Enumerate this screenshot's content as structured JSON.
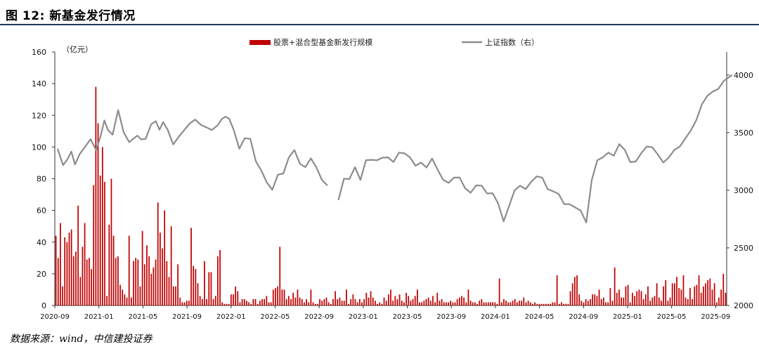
{
  "header": {
    "title": "图 12: 新基金发行情况"
  },
  "footer": {
    "source": "数据来源：wind，中信建投证券"
  },
  "chart_data": {
    "type": "bar",
    "units": {
      "left": "（亿元）"
    },
    "left_axis": {
      "ylim": [
        0,
        160
      ],
      "ticks": [
        0,
        20,
        40,
        60,
        80,
        100,
        120,
        140,
        160
      ]
    },
    "right_axis": {
      "ylim": [
        2000,
        4200
      ],
      "ticks": [
        2000,
        2500,
        3000,
        3500,
        4000
      ]
    },
    "x_tick_labels": [
      "2020-09",
      "2021-01",
      "2021-05",
      "2021-09",
      "2022-01",
      "2022-05",
      "2022-09",
      "2023-01",
      "2023-05",
      "2023-09",
      "2024-01",
      "2024-05",
      "2024-09",
      "2025-01",
      "2025-05",
      "2025-09"
    ],
    "colors": {
      "bar": "#c00000",
      "line": "#8c8c8c"
    },
    "series": [
      {
        "name": "股票+混合型基金新发行规模",
        "axis": "left",
        "kind": "bar",
        "values": [
          44,
          30,
          52,
          12,
          43,
          40,
          46,
          48,
          31,
          34,
          63,
          18,
          37,
          52,
          29,
          30,
          23,
          76,
          138,
          115,
          82,
          100,
          78,
          6,
          51,
          80,
          44,
          30,
          31,
          13,
          10,
          7,
          5,
          44,
          5,
          28,
          30,
          29,
          12,
          47,
          26,
          38,
          31,
          20,
          24,
          29,
          65,
          46,
          36,
          60,
          28,
          18,
          50,
          12,
          12,
          26,
          5,
          2,
          2,
          3,
          3,
          49,
          25,
          23,
          14,
          6,
          4,
          28,
          4,
          21,
          21,
          4,
          6,
          31,
          35,
          2,
          1,
          1,
          1,
          7,
          7,
          12,
          9,
          2,
          4,
          4,
          3,
          2,
          1,
          4,
          4,
          1,
          3,
          4,
          4,
          6,
          2,
          2,
          10,
          11,
          12,
          37,
          10,
          10,
          4,
          6,
          4,
          8,
          5,
          10,
          5,
          4,
          2,
          4,
          2,
          10,
          2,
          1,
          1,
          4,
          3,
          4,
          5,
          2,
          1,
          4,
          9,
          4,
          5,
          3,
          3,
          10,
          1,
          4,
          7,
          4,
          2,
          4,
          2,
          4,
          8,
          5,
          9,
          5,
          3,
          1,
          2,
          1,
          5,
          3,
          7,
          10,
          3,
          6,
          4,
          7,
          3,
          2,
          8,
          6,
          3,
          4,
          6,
          10,
          2,
          2,
          3,
          4,
          5,
          3,
          6,
          2,
          8,
          3,
          4,
          2,
          2,
          2,
          3,
          2,
          2,
          4,
          5,
          6,
          5,
          2,
          10,
          3,
          2,
          2,
          1,
          3,
          4,
          2,
          2,
          2,
          2,
          2,
          2,
          1,
          17,
          2,
          4,
          3,
          2,
          2,
          3,
          4,
          2,
          3,
          3,
          5,
          2,
          3,
          2,
          1,
          2,
          1,
          1,
          1,
          1,
          1,
          1,
          1,
          2,
          2,
          19,
          1,
          2,
          1,
          1,
          1,
          9,
          14,
          18,
          19,
          7,
          3,
          2,
          4,
          3,
          4,
          7,
          7,
          6,
          10,
          4,
          5,
          2,
          2,
          11,
          3,
          24,
          8,
          10,
          5,
          5,
          12,
          13,
          2,
          8,
          6,
          9,
          10,
          9,
          4,
          7,
          12,
          3,
          5,
          6,
          14,
          5,
          3,
          12,
          16,
          3,
          5,
          14,
          14,
          18,
          11,
          10,
          19,
          5,
          4,
          11,
          4,
          12,
          13,
          19,
          8,
          12,
          14,
          16,
          17,
          10,
          14,
          2,
          5,
          10,
          20,
          8
        ]
      },
      {
        "name": "上证指数（右）",
        "axis": "right",
        "kind": "line",
        "points": [
          [
            "2020-09",
            3360
          ],
          [
            "2020-09",
            3218
          ],
          [
            "2020-10",
            3272
          ],
          [
            "2020-10",
            3335
          ],
          [
            "2020-10",
            3224
          ],
          [
            "2020-11",
            3312
          ],
          [
            "2020-11",
            3377
          ],
          [
            "2020-12",
            3444
          ],
          [
            "2020-12",
            3347
          ],
          [
            "2021-01",
            3473
          ],
          [
            "2021-01",
            3606
          ],
          [
            "2021-01",
            3522
          ],
          [
            "2021-02",
            3483
          ],
          [
            "2021-02",
            3696
          ],
          [
            "2021-03",
            3502
          ],
          [
            "2021-03",
            3418
          ],
          [
            "2021-04",
            3450
          ],
          [
            "2021-04",
            3474
          ],
          [
            "2021-04",
            3441
          ],
          [
            "2021-05",
            3447
          ],
          [
            "2021-05",
            3572
          ],
          [
            "2021-06",
            3600
          ],
          [
            "2021-06",
            3525
          ],
          [
            "2021-06",
            3591
          ],
          [
            "2021-07",
            3525
          ],
          [
            "2021-07",
            3397
          ],
          [
            "2021-08",
            3464
          ],
          [
            "2021-08",
            3522
          ],
          [
            "2021-09",
            3580
          ],
          [
            "2021-09",
            3613
          ],
          [
            "2021-10",
            3568
          ],
          [
            "2021-10",
            3547
          ],
          [
            "2021-11",
            3523
          ],
          [
            "2021-11",
            3560
          ],
          [
            "2021-12",
            3618
          ],
          [
            "2021-12",
            3639
          ],
          [
            "2021-12",
            3620
          ],
          [
            "2022-01",
            3522
          ],
          [
            "2022-01",
            3361
          ],
          [
            "2022-02",
            3452
          ],
          [
            "2022-02",
            3445
          ],
          [
            "2022-03",
            3252
          ],
          [
            "2022-03",
            3170
          ],
          [
            "2022-04",
            3067
          ],
          [
            "2022-04",
            3004
          ],
          [
            "2022-05",
            3135
          ],
          [
            "2022-05",
            3146
          ],
          [
            "2022-06",
            3285
          ],
          [
            "2022-06",
            3349
          ],
          [
            "2022-07",
            3230
          ],
          [
            "2022-07",
            3200
          ],
          [
            "2022-08",
            3277
          ],
          [
            "2022-08",
            3198
          ],
          [
            "2022-09",
            3090
          ],
          [
            "2022-09",
            3041
          ],
          [
            "2022-10",
            3080
          ],
          [
            "2022-10",
            2915
          ],
          [
            "2022-11",
            3100
          ],
          [
            "2022-11",
            3097
          ],
          [
            "2022-12",
            3200
          ],
          [
            "2022-12",
            3089
          ],
          [
            "2023-01",
            3260
          ],
          [
            "2023-01",
            3264
          ],
          [
            "2023-02",
            3260
          ],
          [
            "2023-02",
            3283
          ],
          [
            "2023-03",
            3285
          ],
          [
            "2023-03",
            3245
          ],
          [
            "2023-04",
            3327
          ],
          [
            "2023-04",
            3320
          ],
          [
            "2023-05",
            3285
          ],
          [
            "2023-05",
            3212
          ],
          [
            "2023-06",
            3240
          ],
          [
            "2023-06",
            3197
          ],
          [
            "2023-07",
            3275
          ],
          [
            "2023-07",
            3180
          ],
          [
            "2023-08",
            3092
          ],
          [
            "2023-08",
            3064
          ],
          [
            "2023-09",
            3110
          ],
          [
            "2023-09",
            3110
          ],
          [
            "2023-10",
            3017
          ],
          [
            "2023-10",
            2978
          ],
          [
            "2023-11",
            3042
          ],
          [
            "2023-11",
            3040
          ],
          [
            "2023-12",
            2972
          ],
          [
            "2023-12",
            2974
          ],
          [
            "2024-01",
            2886
          ],
          [
            "2024-01",
            2730
          ],
          [
            "2024-02",
            2865
          ],
          [
            "2024-02",
            3000
          ],
          [
            "2024-03",
            3039
          ],
          [
            "2024-03",
            3010
          ],
          [
            "2024-04",
            3072
          ],
          [
            "2024-04",
            3120
          ],
          [
            "2024-05",
            3110
          ],
          [
            "2024-05",
            3010
          ],
          [
            "2024-06",
            2990
          ],
          [
            "2024-06",
            2967
          ],
          [
            "2024-07",
            2880
          ],
          [
            "2024-07",
            2879
          ],
          [
            "2024-08",
            2850
          ],
          [
            "2024-08",
            2824
          ],
          [
            "2024-09",
            2720
          ],
          [
            "2024-09",
            3087
          ],
          [
            "2024-10",
            3260
          ],
          [
            "2024-10",
            3285
          ],
          [
            "2024-11",
            3326
          ],
          [
            "2024-11",
            3300
          ],
          [
            "2024-12",
            3400
          ],
          [
            "2024-12",
            3351
          ],
          [
            "2025-01",
            3243
          ],
          [
            "2025-01",
            3250
          ],
          [
            "2025-02",
            3322
          ],
          [
            "2025-02",
            3380
          ],
          [
            "2025-03",
            3373
          ],
          [
            "2025-03",
            3310
          ],
          [
            "2025-04",
            3240
          ],
          [
            "2025-04",
            3285
          ],
          [
            "2025-05",
            3350
          ],
          [
            "2025-05",
            3380
          ],
          [
            "2025-06",
            3450
          ],
          [
            "2025-06",
            3520
          ],
          [
            "2025-07",
            3610
          ],
          [
            "2025-07",
            3745
          ],
          [
            "2025-08",
            3820
          ],
          [
            "2025-08",
            3857
          ],
          [
            "2025-09",
            3880
          ],
          [
            "2025-09",
            3950
          ],
          [
            "2025-10",
            4000
          ]
        ]
      }
    ]
  }
}
